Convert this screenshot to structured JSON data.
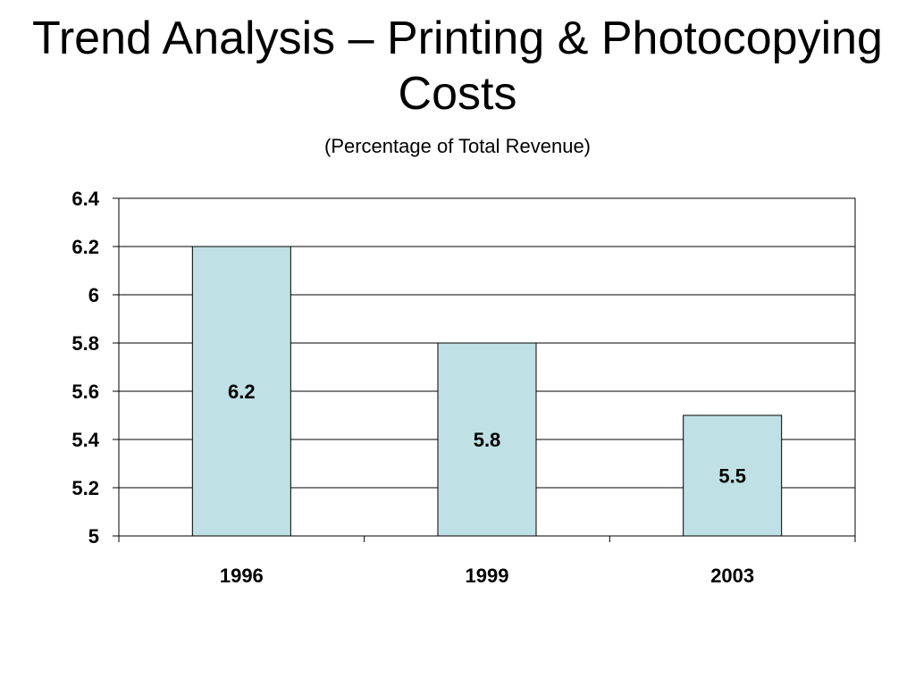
{
  "slide": {
    "title": "Trend Analysis – Printing & Photocopying Costs",
    "subtitle": "(Percentage of Total Revenue)"
  },
  "colors": {
    "bar_fill": "#bfe0e4",
    "bar_stroke": "#000000",
    "grid": "#000000"
  },
  "chart_data": {
    "type": "bar",
    "categories": [
      "1996",
      "1999",
      "2003"
    ],
    "values": [
      6.2,
      5.8,
      5.5
    ],
    "data_labels": [
      "6.2",
      "5.8",
      "5.5"
    ],
    "ylim": [
      5,
      6.4
    ],
    "yticks": [
      5,
      5.2,
      5.4,
      5.6,
      5.8,
      6,
      6.2,
      6.4
    ],
    "ytick_labels": [
      "5",
      "5.2",
      "5.4",
      "5.6",
      "5.8",
      "6",
      "6.2",
      "6.4"
    ],
    "grid": true,
    "legend": "none"
  }
}
